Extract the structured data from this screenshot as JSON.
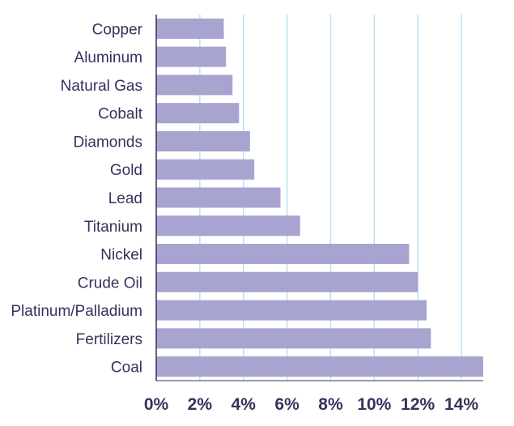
{
  "chart_data": {
    "type": "bar",
    "orientation": "horizontal",
    "categories": [
      "Copper",
      "Aluminum",
      "Natural Gas",
      "Cobalt",
      "Diamonds",
      "Gold",
      "Lead",
      "Titanium",
      "Nickel",
      "Crude Oil",
      "Platinum/Palladium",
      "Fertilizers",
      "Coal"
    ],
    "values": [
      3.1,
      3.2,
      3.5,
      3.8,
      4.3,
      4.5,
      5.7,
      6.6,
      11.6,
      12.0,
      12.4,
      12.6,
      15.1
    ],
    "xlim": [
      0,
      15
    ],
    "x_ticks": [
      "0%",
      "2%",
      "4%",
      "6%",
      "8%",
      "10%",
      "12%",
      "14%"
    ],
    "grid": "vertical",
    "colors": {
      "bar": "#a8a4d0",
      "grid": "#bcdff0",
      "axis": "#3b2f5c",
      "text": "#3b2f5c"
    }
  }
}
